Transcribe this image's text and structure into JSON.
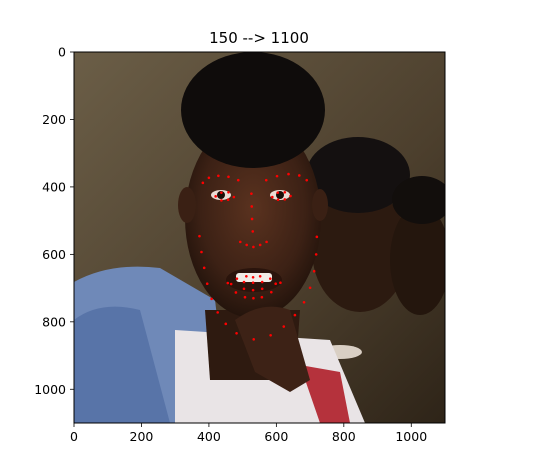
{
  "chart_data": {
    "type": "scatter",
    "title": "150 --> 1100",
    "xlabel": "",
    "ylabel": "",
    "xlim": [
      0,
      1100
    ],
    "ylim": [
      1100,
      0
    ],
    "xticks": [
      0,
      200,
      400,
      600,
      800,
      1000
    ],
    "yticks": [
      0,
      200,
      400,
      600,
      800,
      1000
    ],
    "grid": false,
    "background_image": "photo of a young man's face with other children behind him",
    "marker_color": "#ff0000",
    "series": [
      {
        "points": [
          [
            372,
            546
          ],
          [
            378,
            593
          ],
          [
            386,
            640
          ],
          [
            395,
            687
          ],
          [
            408,
            732
          ],
          [
            426,
            772
          ],
          [
            450,
            806
          ],
          [
            482,
            834
          ],
          [
            533,
            852
          ],
          [
            583,
            840
          ],
          [
            622,
            814
          ],
          [
            655,
            780
          ],
          [
            682,
            742
          ],
          [
            700,
            699
          ],
          [
            712,
            650
          ],
          [
            718,
            600
          ],
          [
            720,
            548
          ],
          [
            382,
            388
          ],
          [
            400,
            373
          ],
          [
            428,
            367
          ],
          [
            458,
            370
          ],
          [
            487,
            380
          ],
          [
            570,
            380
          ],
          [
            602,
            368
          ],
          [
            636,
            362
          ],
          [
            668,
            366
          ],
          [
            690,
            380
          ],
          [
            526,
            420
          ],
          [
            527,
            458
          ],
          [
            528,
            495
          ],
          [
            530,
            532
          ],
          [
            493,
            563
          ],
          [
            512,
            572
          ],
          [
            532,
            578
          ],
          [
            552,
            572
          ],
          [
            571,
            563
          ],
          [
            420,
            428
          ],
          [
            437,
            417
          ],
          [
            458,
            416
          ],
          [
            474,
            430
          ],
          [
            457,
            438
          ],
          [
            437,
            440
          ],
          [
            588,
            430
          ],
          [
            604,
            417
          ],
          [
            625,
            416
          ],
          [
            642,
            427
          ],
          [
            625,
            437
          ],
          [
            605,
            438
          ],
          [
            456,
            685
          ],
          [
            483,
            672
          ],
          [
            511,
            665
          ],
          [
            531,
            668
          ],
          [
            552,
            665
          ],
          [
            582,
            672
          ],
          [
            612,
            684
          ],
          [
            585,
            712
          ],
          [
            557,
            727
          ],
          [
            532,
            730
          ],
          [
            507,
            727
          ],
          [
            480,
            713
          ],
          [
            466,
            688
          ],
          [
            504,
            682
          ],
          [
            531,
            684
          ],
          [
            558,
            682
          ],
          [
            598,
            687
          ],
          [
            558,
            702
          ],
          [
            531,
            706
          ],
          [
            504,
            702
          ]
        ]
      }
    ]
  }
}
